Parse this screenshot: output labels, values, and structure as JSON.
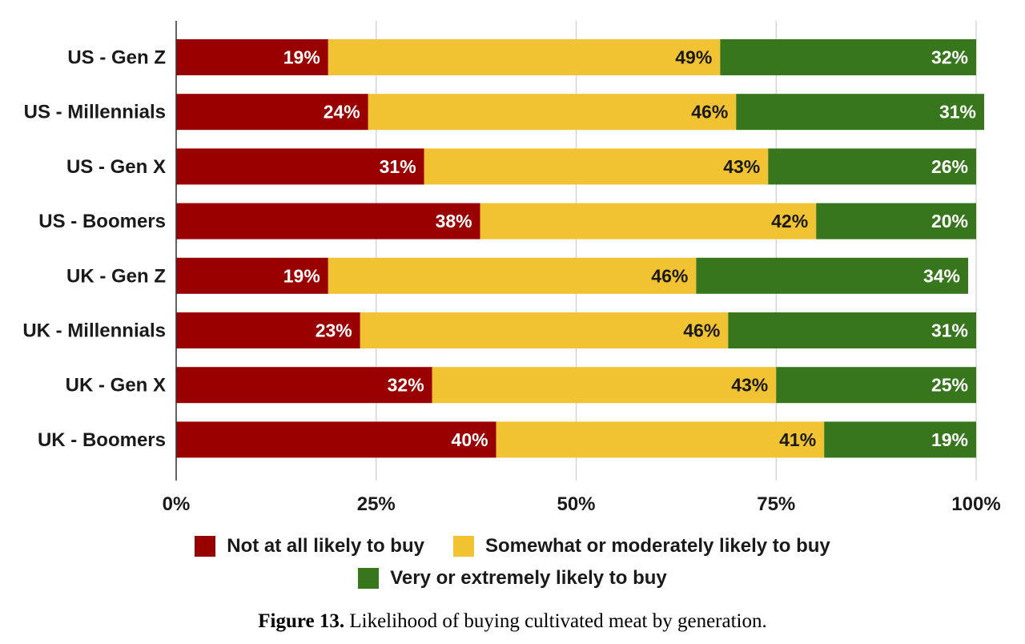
{
  "chart_data": {
    "type": "bar",
    "orientation": "horizontal",
    "stacked": true,
    "categories": [
      "US - Gen Z",
      "US - Millennials",
      "US - Gen X",
      "US - Boomers",
      "UK - Gen Z",
      "UK - Millennials",
      "UK - Gen X",
      "UK - Boomers"
    ],
    "series": [
      {
        "name": "Not at all likely to buy",
        "color": "#990000",
        "label_color": "#ffffff",
        "values": [
          19,
          24,
          31,
          38,
          19,
          23,
          32,
          40
        ]
      },
      {
        "name": "Somewhat or moderately likely to buy",
        "color": "#f1c232",
        "label_color": "#1a1a1a",
        "values": [
          49,
          46,
          43,
          42,
          46,
          46,
          43,
          41
        ]
      },
      {
        "name": "Very or extremely likely to buy",
        "color": "#38761d",
        "label_color": "#ffffff",
        "values": [
          32,
          31,
          26,
          20,
          34,
          31,
          25,
          19
        ]
      }
    ],
    "xlim": [
      0,
      100
    ],
    "xticks": [
      0,
      25,
      50,
      75,
      100
    ],
    "xtick_labels": [
      "0%",
      "25%",
      "50%",
      "75%",
      "100%"
    ],
    "value_suffix": "%",
    "grid": true,
    "legend_position": "bottom",
    "title": "",
    "xlabel": "",
    "ylabel": ""
  },
  "caption": {
    "label": "Figure 13.",
    "text": " Likelihood of buying cultivated meat by generation."
  }
}
